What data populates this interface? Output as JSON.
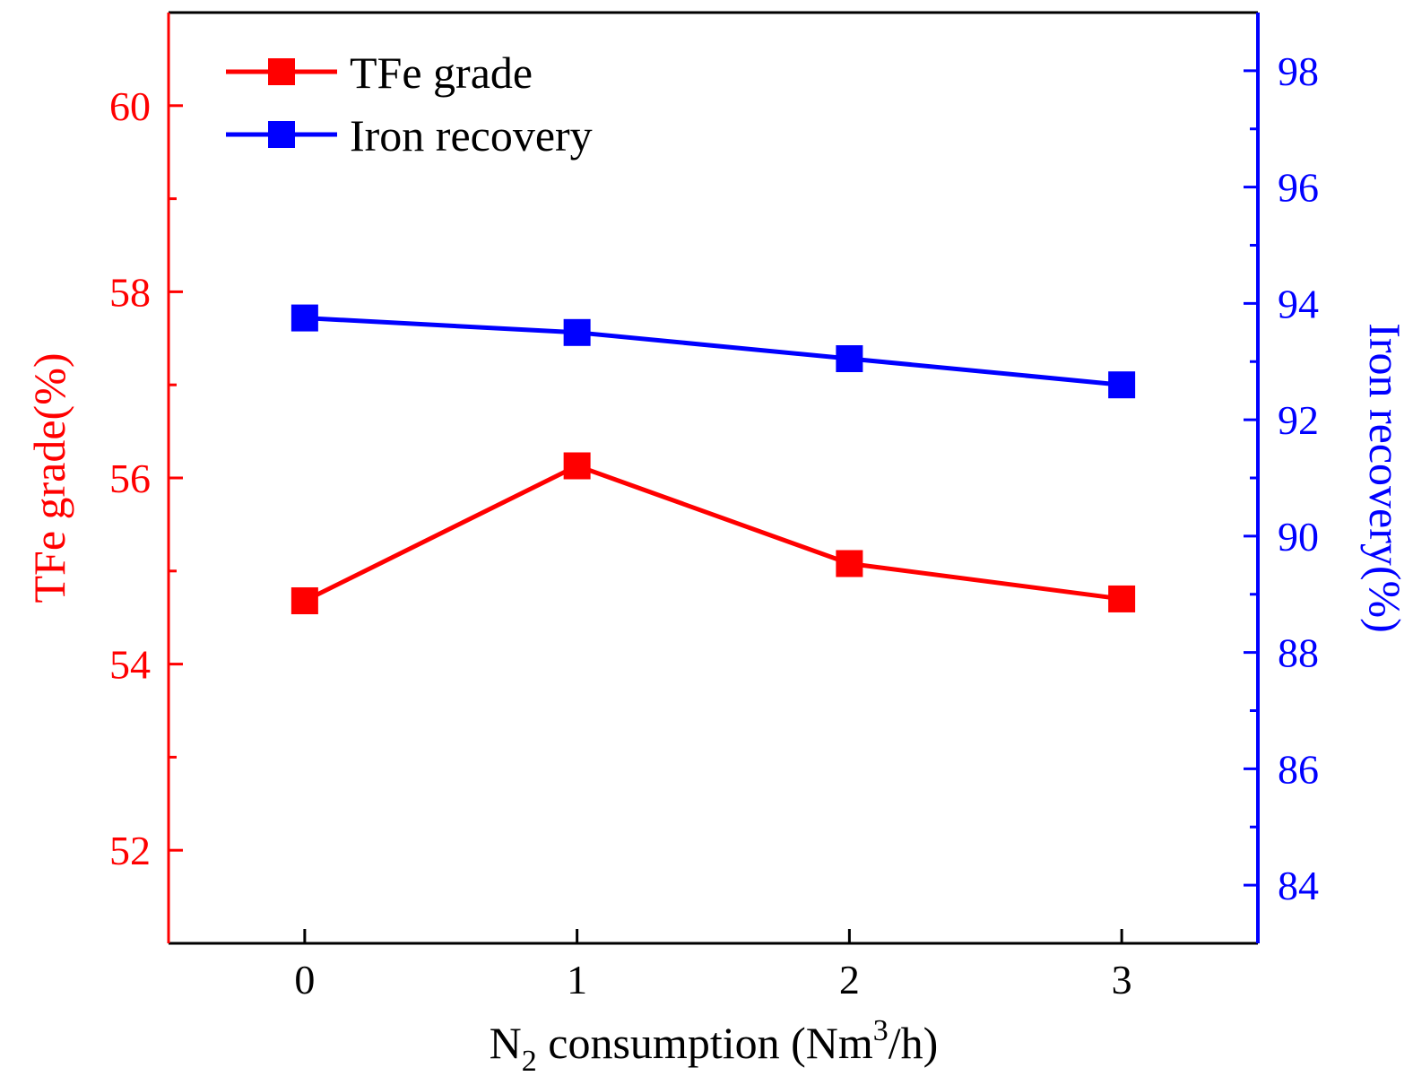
{
  "chart_data": {
    "type": "line",
    "x": [
      0,
      1,
      2,
      3
    ],
    "xlim": [
      -0.5,
      3.5
    ],
    "x_ticks": [
      0,
      1,
      2,
      3
    ],
    "xlabel": {
      "main": "N",
      "sub1": "2",
      "middle": " consumption (Nm",
      "sup": "3",
      "tail": "/h)"
    },
    "y_left": {
      "label": "TFe grade(%)",
      "lim": [
        51,
        61
      ],
      "ticks": [
        52,
        54,
        56,
        58,
        60
      ],
      "color": "#ff0000"
    },
    "y_right": {
      "label": "Iron recovery(%)",
      "lim": [
        83,
        99
      ],
      "ticks": [
        84,
        86,
        88,
        90,
        92,
        94,
        96,
        98
      ],
      "color": "#0000ff"
    },
    "series": [
      {
        "name": "TFe grade",
        "axis": "left",
        "color": "#ff0000",
        "values": [
          54.68,
          56.13,
          55.08,
          54.7
        ]
      },
      {
        "name": "Iron recovery",
        "axis": "right",
        "color": "#0000ff",
        "values": [
          93.75,
          93.5,
          93.05,
          92.6
        ]
      }
    ],
    "legend_position": "top-left",
    "grid": false
  }
}
